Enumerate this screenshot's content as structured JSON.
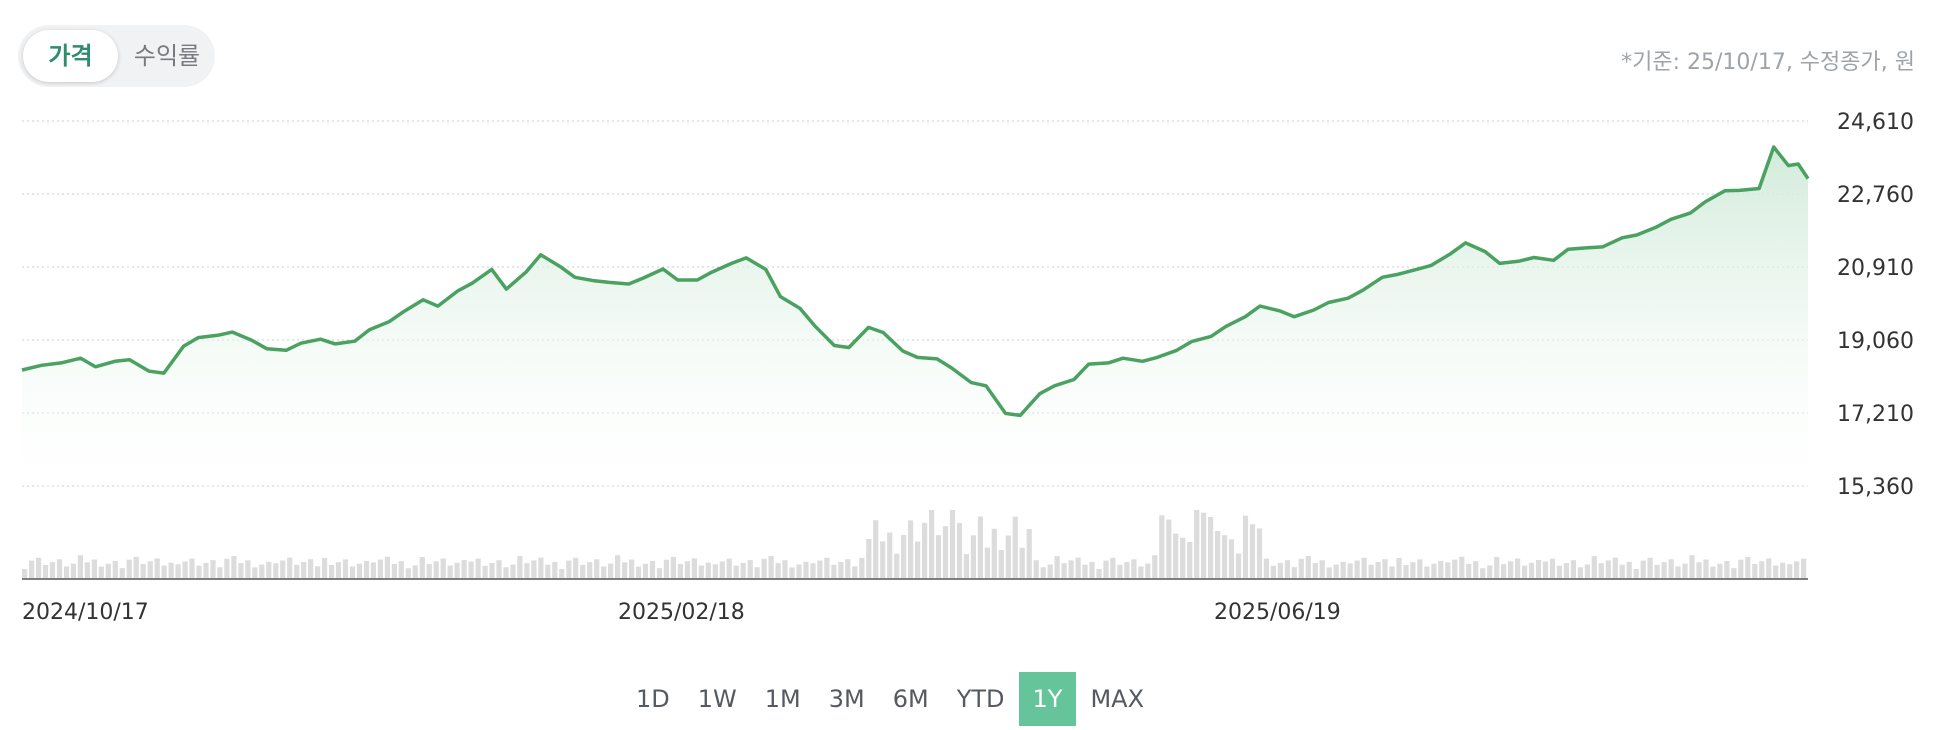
{
  "toggle": {
    "price_label": "가격",
    "return_label": "수익률"
  },
  "note": "*기준: 25/10/17, 수정종가, 원",
  "periods": [
    "1D",
    "1W",
    "1M",
    "3M",
    "6M",
    "YTD",
    "1Y",
    "MAX"
  ],
  "active_period": "1Y",
  "colors": {
    "line": "#4aa160",
    "fill": "#cfead8",
    "active_period": "#66c49a",
    "volume": "#dcdcdc"
  },
  "chart_data": {
    "type": "area",
    "y_ticks": [
      "24,610",
      "22,760",
      "20,910",
      "19,060",
      "17,210",
      "15,360"
    ],
    "ylim": [
      15360,
      24610
    ],
    "x_tick_labels": [
      "2024/10/17",
      "2025/02/18",
      "2025/06/19"
    ],
    "grid": true,
    "price": [
      [
        "2024-10-17",
        18300
      ],
      [
        "2024-10-21",
        18420
      ],
      [
        "2024-10-25",
        18480
      ],
      [
        "2024-10-29",
        18600
      ],
      [
        "2024-11-01",
        18380
      ],
      [
        "2024-11-05",
        18520
      ],
      [
        "2024-11-08",
        18560
      ],
      [
        "2024-11-12",
        18270
      ],
      [
        "2024-11-15",
        18220
      ],
      [
        "2024-11-19",
        18900
      ],
      [
        "2024-11-22",
        19120
      ],
      [
        "2024-11-26",
        19180
      ],
      [
        "2024-11-29",
        19260
      ],
      [
        "2024-12-03",
        19050
      ],
      [
        "2024-12-06",
        18840
      ],
      [
        "2024-12-10",
        18800
      ],
      [
        "2024-12-13",
        18980
      ],
      [
        "2024-12-17",
        19080
      ],
      [
        "2024-12-20",
        18960
      ],
      [
        "2024-12-24",
        19030
      ],
      [
        "2024-12-27",
        19320
      ],
      [
        "2024-12-31",
        19520
      ],
      [
        "2025-01-03",
        19780
      ],
      [
        "2025-01-07",
        20080
      ],
      [
        "2025-01-10",
        19920
      ],
      [
        "2025-01-14",
        20300
      ],
      [
        "2025-01-17",
        20500
      ],
      [
        "2025-01-21",
        20850
      ],
      [
        "2025-01-24",
        20350
      ],
      [
        "2025-01-28",
        20780
      ],
      [
        "2025-01-31",
        21220
      ],
      [
        "2025-02-04",
        20920
      ],
      [
        "2025-02-07",
        20650
      ],
      [
        "2025-02-11",
        20560
      ],
      [
        "2025-02-14",
        20520
      ],
      [
        "2025-02-18",
        20480
      ],
      [
        "2025-02-21",
        20630
      ],
      [
        "2025-02-25",
        20860
      ],
      [
        "2025-02-28",
        20580
      ],
      [
        "2025-03-04",
        20580
      ],
      [
        "2025-03-07",
        20780
      ],
      [
        "2025-03-11",
        21000
      ],
      [
        "2025-03-14",
        21140
      ],
      [
        "2025-03-18",
        20850
      ],
      [
        "2025-03-21",
        20160
      ],
      [
        "2025-03-25",
        19860
      ],
      [
        "2025-03-28",
        19420
      ],
      [
        "2025-04-01",
        18920
      ],
      [
        "2025-04-04",
        18870
      ],
      [
        "2025-04-08",
        19380
      ],
      [
        "2025-04-11",
        19250
      ],
      [
        "2025-04-15",
        18780
      ],
      [
        "2025-04-18",
        18620
      ],
      [
        "2025-04-22",
        18580
      ],
      [
        "2025-04-25",
        18350
      ],
      [
        "2025-04-29",
        17980
      ],
      [
        "2025-05-02",
        17900
      ],
      [
        "2025-05-06",
        17200
      ],
      [
        "2025-05-09",
        17150
      ],
      [
        "2025-05-13",
        17700
      ],
      [
        "2025-05-16",
        17900
      ],
      [
        "2025-05-20",
        18060
      ],
      [
        "2025-05-23",
        18450
      ],
      [
        "2025-05-27",
        18480
      ],
      [
        "2025-05-30",
        18600
      ],
      [
        "2025-06-03",
        18520
      ],
      [
        "2025-06-06",
        18620
      ],
      [
        "2025-06-10",
        18800
      ],
      [
        "2025-06-13",
        19020
      ],
      [
        "2025-06-17",
        19150
      ],
      [
        "2025-06-20",
        19400
      ],
      [
        "2025-06-24",
        19650
      ],
      [
        "2025-06-27",
        19920
      ],
      [
        "2025-07-01",
        19800
      ],
      [
        "2025-07-04",
        19650
      ],
      [
        "2025-07-08",
        19820
      ],
      [
        "2025-07-11",
        20010
      ],
      [
        "2025-07-15",
        20120
      ],
      [
        "2025-07-18",
        20320
      ],
      [
        "2025-07-22",
        20650
      ],
      [
        "2025-07-25",
        20720
      ],
      [
        "2025-07-29",
        20850
      ],
      [
        "2025-08-01",
        20950
      ],
      [
        "2025-08-05",
        21250
      ],
      [
        "2025-08-08",
        21520
      ],
      [
        "2025-08-12",
        21300
      ],
      [
        "2025-08-15",
        21000
      ],
      [
        "2025-08-19",
        21060
      ],
      [
        "2025-08-22",
        21150
      ],
      [
        "2025-08-26",
        21080
      ],
      [
        "2025-08-29",
        21360
      ],
      [
        "2025-09-02",
        21400
      ],
      [
        "2025-09-05",
        21420
      ],
      [
        "2025-09-09",
        21650
      ],
      [
        "2025-09-12",
        21720
      ],
      [
        "2025-09-16",
        21920
      ],
      [
        "2025-09-19",
        22120
      ],
      [
        "2025-09-23",
        22280
      ],
      [
        "2025-09-26",
        22560
      ],
      [
        "2025-09-30",
        22840
      ],
      [
        "2025-10-03",
        22850
      ],
      [
        "2025-10-07",
        22900
      ],
      [
        "2025-10-10",
        23950
      ],
      [
        "2025-10-13",
        23480
      ],
      [
        "2025-10-15",
        23520
      ],
      [
        "2025-10-17",
        23150
      ]
    ]
  }
}
